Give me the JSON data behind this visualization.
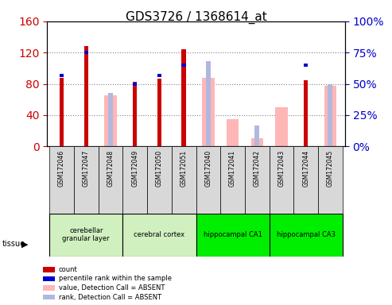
{
  "title": "GDS3726 / 1368614_at",
  "samples": [
    "GSM172046",
    "GSM172047",
    "GSM172048",
    "GSM172049",
    "GSM172050",
    "GSM172051",
    "GSM172040",
    "GSM172041",
    "GSM172042",
    "GSM172043",
    "GSM172044",
    "GSM172045"
  ],
  "count_values": [
    88,
    128,
    0,
    83,
    87,
    124,
    0,
    0,
    0,
    0,
    85,
    0
  ],
  "percentile_rank": [
    57,
    75,
    0,
    50,
    57,
    65,
    0,
    0,
    0,
    0,
    65,
    0
  ],
  "absent_value": [
    0,
    0,
    65,
    0,
    0,
    0,
    88,
    35,
    10,
    50,
    0,
    78
  ],
  "absent_rank": [
    0,
    0,
    43,
    0,
    0,
    65,
    68,
    0,
    17,
    0,
    0,
    50
  ],
  "tissues": [
    {
      "label": "cerebellar\ngranular layer",
      "start": 0,
      "end": 3,
      "color": "#d0f0c0"
    },
    {
      "label": "cerebral cortex",
      "start": 3,
      "end": 6,
      "color": "#d0f0c0"
    },
    {
      "label": "hippocampal CA1",
      "start": 6,
      "end": 9,
      "color": "#00ee00"
    },
    {
      "label": "hippocampal CA3",
      "start": 9,
      "end": 12,
      "color": "#00ee00"
    }
  ],
  "ylim_left": [
    0,
    160
  ],
  "ylim_right": [
    0,
    100
  ],
  "yticks_left": [
    0,
    40,
    80,
    120,
    160
  ],
  "yticks_right": [
    0,
    25,
    50,
    75,
    100
  ],
  "color_count": "#cc0000",
  "color_rank": "#0000cc",
  "color_absent_value": "#ffb6b6",
  "color_absent_rank": "#b0b8e0",
  "legend_items": [
    {
      "label": "count",
      "color": "#cc0000"
    },
    {
      "label": "percentile rank within the sample",
      "color": "#0000cc"
    },
    {
      "label": "value, Detection Call = ABSENT",
      "color": "#ffb6b6"
    },
    {
      "label": "rank, Detection Call = ABSENT",
      "color": "#b0b8e0"
    }
  ]
}
